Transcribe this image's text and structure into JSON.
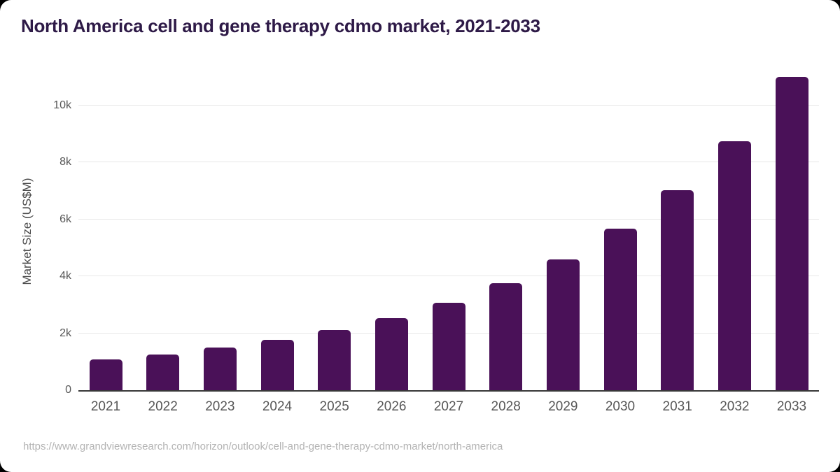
{
  "chart": {
    "title": "North America cell and gene therapy cdmo market, 2021-2033",
    "ylabel": "Market Size (US$M)"
  },
  "footer": {
    "source_url": "https://www.grandviewresearch.com/horizon/outlook/cell-and-gene-therapy-cdmo-market/north-america"
  },
  "colors": {
    "bar": "#4a1158",
    "title_text": "#2e1a47",
    "gridline": "#e8e8e8",
    "axis_line": "#383838",
    "tick_text": "#565656",
    "url_text": "#b3b3b3",
    "card_bg": "#ffffff",
    "outer_bg": "#000000"
  },
  "chart_data": {
    "type": "bar",
    "title": "North America cell and gene therapy cdmo market, 2021-2033",
    "categories": [
      "2021",
      "2022",
      "2023",
      "2024",
      "2025",
      "2026",
      "2027",
      "2028",
      "2029",
      "2030",
      "2031",
      "2032",
      "2033"
    ],
    "values": [
      1080,
      1250,
      1490,
      1775,
      2105,
      2535,
      3080,
      3760,
      4590,
      5670,
      7025,
      8740,
      11000
    ],
    "xlabel": "",
    "ylabel": "Market Size (US$M)",
    "ylim": [
      0,
      11125
    ],
    "yticks": [
      {
        "value": 0,
        "label": "0"
      },
      {
        "value": 2000,
        "label": "2k"
      },
      {
        "value": 4000,
        "label": "4k"
      },
      {
        "value": 6000,
        "label": "6k"
      },
      {
        "value": 8000,
        "label": "8k"
      },
      {
        "value": 10000,
        "label": "10k"
      }
    ],
    "grid": true,
    "legend": false
  }
}
